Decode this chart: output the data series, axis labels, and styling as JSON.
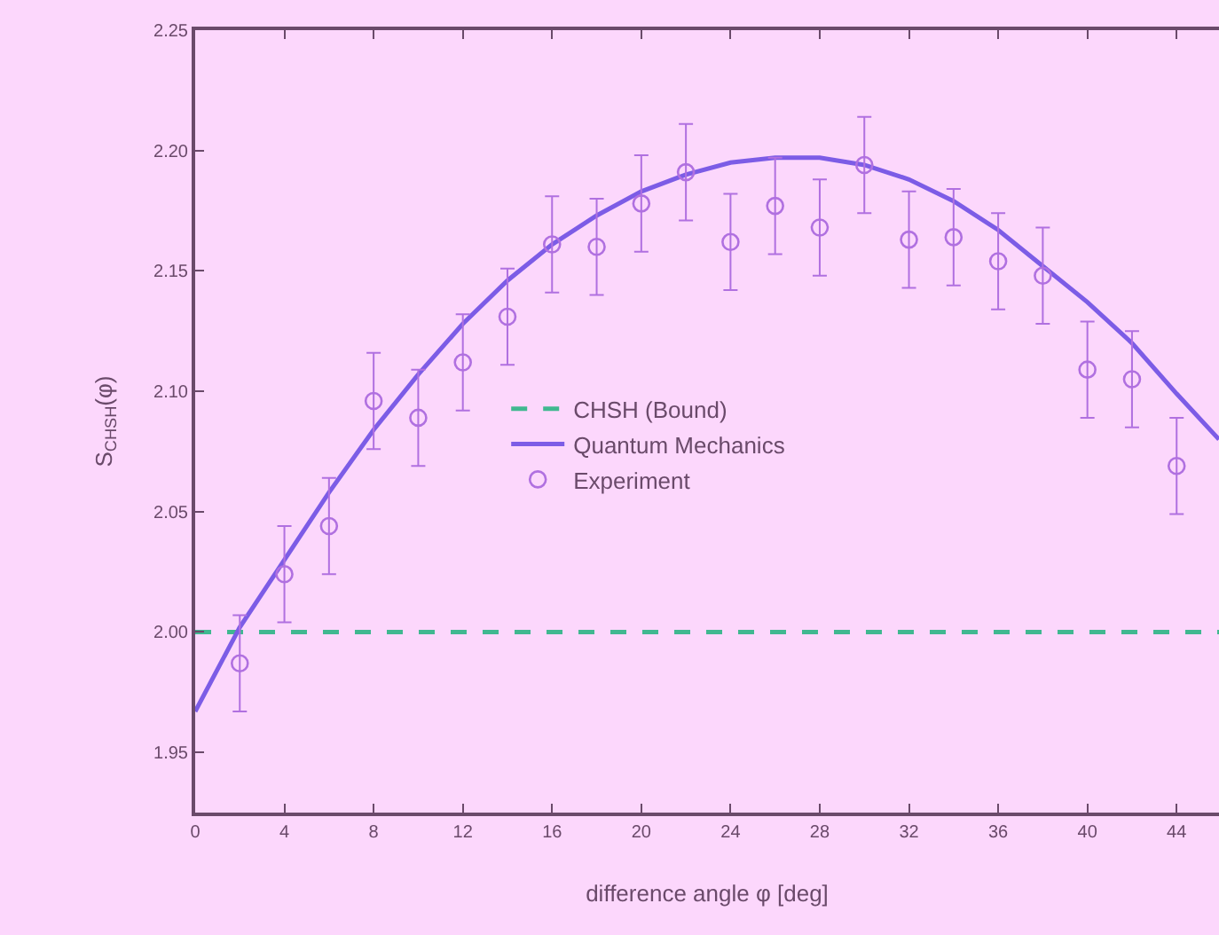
{
  "chart_data": {
    "type": "line",
    "xlabel": "difference angle φ [deg]",
    "ylabel": "S$_{CHSH}$(φ)",
    "xlim": [
      0,
      45.9
    ],
    "xticks": [
      0,
      4,
      8,
      12,
      16,
      20,
      24,
      28,
      32,
      36,
      40,
      44
    ],
    "ylim": [
      1.925,
      2.25
    ],
    "yticks": [
      {
        "value": 1.95,
        "label": "1.95"
      },
      {
        "value": 2.0,
        "label": "2.00"
      },
      {
        "value": 2.05,
        "label": "2.05"
      },
      {
        "value": 2.1,
        "label": "2.10"
      },
      {
        "value": 2.15,
        "label": "2.15"
      },
      {
        "value": 2.2,
        "label": "2.20"
      },
      {
        "value": 2.25,
        "label": "2.25"
      }
    ],
    "grid": false,
    "legend": "center",
    "series": [
      {
        "name": "CHSH (Bound)",
        "line_style": "dashed",
        "marker": "none",
        "color": "#40b890",
        "x": [
          0,
          45.9
        ],
        "values": [
          2.0,
          2.0
        ]
      },
      {
        "name": "Quantum Mechanics",
        "line_style": "solid",
        "marker": "none",
        "color": "#7c5ce6",
        "x": [
          0,
          2,
          4,
          6,
          8,
          10,
          12,
          14,
          16,
          18,
          20,
          22,
          24,
          26,
          28,
          30,
          32,
          34,
          36,
          38,
          40,
          42,
          44,
          45.9
        ],
        "values": [
          1.967,
          2.002,
          2.03,
          2.058,
          2.084,
          2.107,
          2.128,
          2.146,
          2.161,
          2.173,
          2.183,
          2.19,
          2.195,
          2.197,
          2.197,
          2.194,
          2.188,
          2.179,
          2.167,
          2.152,
          2.137,
          2.12,
          2.099,
          2.08
        ]
      },
      {
        "name": "Experiment",
        "type": "scatter",
        "marker": "circle",
        "color": "#b070e0",
        "x": [
          2,
          4,
          6,
          8,
          10,
          12,
          14,
          16,
          18,
          20,
          22,
          24,
          26,
          28,
          30,
          32,
          34,
          36,
          38,
          40,
          42,
          44
        ],
        "values": [
          1.987,
          2.024,
          2.044,
          2.096,
          2.089,
          2.112,
          2.131,
          2.161,
          2.16,
          2.178,
          2.191,
          2.162,
          2.177,
          2.168,
          2.194,
          2.163,
          2.164,
          2.154,
          2.148,
          2.109,
          2.105,
          2.069
        ],
        "errors": [
          0.02,
          0.02,
          0.02,
          0.02,
          0.02,
          0.02,
          0.02,
          0.02,
          0.02,
          0.02,
          0.02,
          0.02,
          0.02,
          0.02,
          0.02,
          0.02,
          0.02,
          0.02,
          0.02,
          0.02,
          0.02,
          0.02
        ]
      }
    ]
  }
}
